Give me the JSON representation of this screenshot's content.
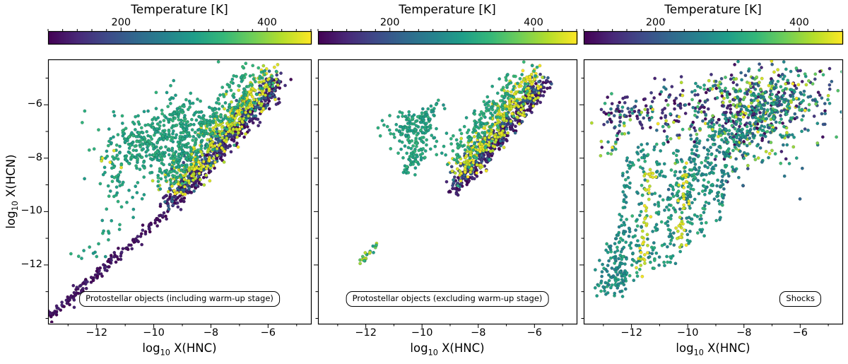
{
  "chart_data": {
    "type": "scatter",
    "seed": 42,
    "xlabel": "log10 X(HNC)",
    "ylabel": "log10 X(HCN)",
    "xlabel_parts": {
      "prefix": "log",
      "sub": "10",
      "rest": " X(HNC)"
    },
    "ylabel_parts": {
      "prefix": "log",
      "sub": "10",
      "rest": " X(HCN)"
    },
    "x_range": [
      -13.7,
      -4.5
    ],
    "y_range": [
      -14.2,
      -4.3
    ],
    "x_ticks": [
      {
        "v": -12,
        "label": "−12"
      },
      {
        "v": -10,
        "label": "−10"
      },
      {
        "v": -8,
        "label": "−8"
      },
      {
        "v": -6,
        "label": "−6"
      }
    ],
    "y_ticks": [
      {
        "v": -6,
        "label": "−6"
      },
      {
        "v": -8,
        "label": "−8"
      },
      {
        "v": -10,
        "label": "−10"
      },
      {
        "v": -12,
        "label": "−12"
      }
    ],
    "grid": false,
    "point_radius": 2.2,
    "colorbar": {
      "title": "Temperature [K]",
      "range": [
        100,
        460
      ],
      "minor_step": 20,
      "ticks": [
        {
          "v": 200,
          "label": "200"
        },
        {
          "v": 400,
          "label": "400"
        }
      ],
      "colormap": "viridis",
      "stops": [
        "#440154",
        "#482878",
        "#3e4a89",
        "#31688e",
        "#26828e",
        "#1f9e89",
        "#35b779",
        "#6ece58",
        "#b5de2b",
        "#fde725"
      ]
    },
    "panels": [
      {
        "name": "protostellar-including-warmup",
        "label": "Protostellar objects (including warm-up stage)",
        "legend_position": "bottom-center",
        "clusters": [
          {
            "type": "line",
            "from": [
              -13.65,
              -13.95
            ],
            "to": [
              -9.6,
              -10.05
            ],
            "jitter": 0.1,
            "n": 160,
            "t": [
              100,
              140
            ]
          },
          {
            "type": "line",
            "from": [
              -12.5,
              -11.9
            ],
            "to": [
              -10.9,
              -10.0
            ],
            "jitter": 0.3,
            "n": 22,
            "t": [
              290,
              330
            ]
          },
          {
            "type": "line",
            "from": [
              -9.6,
              -9.95
            ],
            "to": [
              -5.55,
              -5.2
            ],
            "jitter": 0.17,
            "n": 340,
            "t": [
              100,
              150
            ]
          },
          {
            "type": "line",
            "from": [
              -9.45,
              -9.55
            ],
            "to": [
              -5.7,
              -5.05
            ],
            "jitter": 0.22,
            "n": 260,
            "t": [
              150,
              250
            ]
          },
          {
            "type": "line",
            "from": [
              -9.25,
              -9.1
            ],
            "to": [
              -5.95,
              -4.9
            ],
            "jitter": 0.28,
            "n": 330,
            "t": [
              415,
              460
            ]
          },
          {
            "type": "line",
            "from": [
              -9.5,
              -8.6
            ],
            "to": [
              -6.35,
              -4.8
            ],
            "jitter": 0.33,
            "n": 280,
            "t": [
              300,
              345
            ]
          },
          {
            "type": "blob",
            "center": [
              -10.2,
              -7.5
            ],
            "sx": 0.85,
            "sy": 0.65,
            "n": 300,
            "t": [
              295,
              335
            ]
          },
          {
            "type": "blob",
            "center": [
              -9.1,
              -6.5
            ],
            "sx": 0.6,
            "sy": 0.5,
            "n": 130,
            "t": [
              295,
              335
            ]
          },
          {
            "type": "blob",
            "center": [
              -11.2,
              -8.8
            ],
            "sx": 0.45,
            "sy": 0.6,
            "n": 45,
            "t": [
              295,
              335
            ]
          },
          {
            "type": "blob",
            "center": [
              -11.4,
              -8.0
            ],
            "sx": 0.25,
            "sy": 0.2,
            "n": 5,
            "t": [
              430,
              455
            ]
          }
        ]
      },
      {
        "name": "protostellar-excluding-warmup",
        "label": "Protostellar objects (excluding warm-up stage)",
        "legend_position": "bottom-center",
        "clusters": [
          {
            "type": "line",
            "from": [
              -8.95,
              -9.35
            ],
            "to": [
              -5.6,
              -5.25
            ],
            "jitter": 0.15,
            "n": 280,
            "t": [
              100,
              150
            ]
          },
          {
            "type": "line",
            "from": [
              -8.85,
              -8.95
            ],
            "to": [
              -5.75,
              -5.05
            ],
            "jitter": 0.2,
            "n": 210,
            "t": [
              150,
              250
            ]
          },
          {
            "type": "line",
            "from": [
              -8.65,
              -8.5
            ],
            "to": [
              -5.95,
              -4.9
            ],
            "jitter": 0.26,
            "n": 300,
            "t": [
              415,
              460
            ]
          },
          {
            "type": "line",
            "from": [
              -8.9,
              -8.1
            ],
            "to": [
              -6.4,
              -4.85
            ],
            "jitter": 0.3,
            "n": 190,
            "t": [
              300,
              345
            ]
          },
          {
            "type": "blob",
            "center": [
              -10.25,
              -7.05
            ],
            "sx": 0.5,
            "sy": 0.45,
            "n": 150,
            "t": [
              295,
              335
            ]
          },
          {
            "type": "line",
            "from": [
              -10.55,
              -8.6
            ],
            "to": [
              -10.1,
              -7.6
            ],
            "jitter": 0.13,
            "n": 40,
            "t": [
              295,
              335
            ]
          },
          {
            "type": "line",
            "from": [
              -9.9,
              -6.6
            ],
            "to": [
              -9.35,
              -6.0
            ],
            "jitter": 0.15,
            "n": 28,
            "t": [
              280,
              330
            ]
          },
          {
            "type": "line",
            "from": [
              -12.25,
              -11.95
            ],
            "to": [
              -11.55,
              -11.2
            ],
            "jitter": 0.08,
            "n": 22,
            "t": [
              290,
              440
            ]
          }
        ]
      },
      {
        "name": "shocks",
        "label": "Shocks",
        "legend_position": "bottom-right",
        "clusters": [
          {
            "type": "blob",
            "center": [
              -7.0,
              -5.7
            ],
            "sx": 1.25,
            "sy": 0.7,
            "n": 360,
            "t": [
              100,
              460
            ]
          },
          {
            "type": "blob",
            "center": [
              -7.6,
              -6.9
            ],
            "sx": 1.0,
            "sy": 0.8,
            "n": 220,
            "t": [
              100,
              460
            ]
          },
          {
            "type": "line",
            "from": [
              -10.6,
              -9.6
            ],
            "to": [
              -6.6,
              -5.6
            ],
            "jitter": 0.5,
            "n": 230,
            "t": [
              220,
              340
            ]
          },
          {
            "type": "line",
            "from": [
              -12.45,
              -13.1
            ],
            "to": [
              -12.1,
              -8.0
            ],
            "jitter": 0.12,
            "n": 60,
            "t": [
              250,
              330
            ]
          },
          {
            "type": "line",
            "from": [
              -11.9,
              -12.6
            ],
            "to": [
              -11.55,
              -7.6
            ],
            "jitter": 0.12,
            "n": 60,
            "t": [
              260,
              340
            ]
          },
          {
            "type": "line",
            "from": [
              -11.3,
              -12.2
            ],
            "to": [
              -10.9,
              -7.3
            ],
            "jitter": 0.12,
            "n": 55,
            "t": [
              250,
              330
            ]
          },
          {
            "type": "line",
            "from": [
              -10.7,
              -12.0
            ],
            "to": [
              -10.3,
              -7.6
            ],
            "jitter": 0.12,
            "n": 55,
            "t": [
              260,
              340
            ]
          },
          {
            "type": "line",
            "from": [
              -10.1,
              -11.4
            ],
            "to": [
              -9.7,
              -7.2
            ],
            "jitter": 0.12,
            "n": 50,
            "t": [
              250,
              330
            ]
          },
          {
            "type": "line",
            "from": [
              -9.5,
              -11.0
            ],
            "to": [
              -9.1,
              -7.0
            ],
            "jitter": 0.12,
            "n": 45,
            "t": [
              260,
              340
            ]
          },
          {
            "type": "line",
            "from": [
              -11.65,
              -12.3
            ],
            "to": [
              -11.35,
              -8.4
            ],
            "jitter": 0.1,
            "n": 45,
            "t": [
              420,
              460
            ]
          },
          {
            "type": "line",
            "from": [
              -10.35,
              -11.5
            ],
            "to": [
              -10.05,
              -8.1
            ],
            "jitter": 0.1,
            "n": 40,
            "t": [
              420,
              460
            ]
          },
          {
            "type": "line",
            "from": [
              -8.9,
              -10.4
            ],
            "to": [
              -8.55,
              -6.8
            ],
            "jitter": 0.12,
            "n": 45,
            "t": [
              250,
              340
            ]
          },
          {
            "type": "blob",
            "center": [
              -11.0,
              -6.1
            ],
            "sx": 1.3,
            "sy": 0.45,
            "n": 80,
            "t": [
              100,
              170
            ]
          },
          {
            "type": "blob",
            "center": [
              -10.2,
              -6.4
            ],
            "sx": 1.4,
            "sy": 0.55,
            "n": 90,
            "t": [
              100,
              460
            ]
          },
          {
            "type": "line",
            "from": [
              -13.2,
              -12.9
            ],
            "to": [
              -12.1,
              -10.3
            ],
            "jitter": 0.18,
            "n": 55,
            "t": [
              250,
              330
            ]
          },
          {
            "type": "blob",
            "center": [
              -12.6,
              -12.5
            ],
            "sx": 0.3,
            "sy": 0.5,
            "n": 55,
            "t": [
              250,
              320
            ]
          },
          {
            "type": "line",
            "from": [
              -12.9,
              -7.9
            ],
            "to": [
              -12.2,
              -6.3
            ],
            "jitter": 0.25,
            "n": 30,
            "t": [
              100,
              460
            ]
          },
          {
            "type": "blob",
            "center": [
              -12.3,
              -6.3
            ],
            "sx": 0.6,
            "sy": 0.4,
            "n": 35,
            "t": [
              100,
              340
            ]
          }
        ]
      }
    ]
  }
}
